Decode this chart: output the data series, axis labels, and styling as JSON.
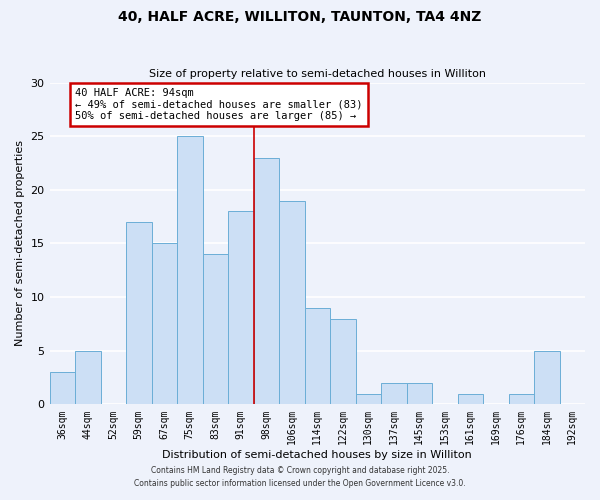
{
  "title": "40, HALF ACRE, WILLITON, TAUNTON, TA4 4NZ",
  "subtitle": "Size of property relative to semi-detached houses in Williton",
  "xlabel": "Distribution of semi-detached houses by size in Williton",
  "ylabel": "Number of semi-detached properties",
  "bin_labels": [
    "36sqm",
    "44sqm",
    "52sqm",
    "59sqm",
    "67sqm",
    "75sqm",
    "83sqm",
    "91sqm",
    "98sqm",
    "106sqm",
    "114sqm",
    "122sqm",
    "130sqm",
    "137sqm",
    "145sqm",
    "153sqm",
    "161sqm",
    "169sqm",
    "176sqm",
    "184sqm",
    "192sqm"
  ],
  "bar_values": [
    3,
    5,
    0,
    17,
    15,
    25,
    14,
    18,
    23,
    19,
    9,
    8,
    1,
    2,
    2,
    0,
    1,
    0,
    1,
    5,
    0
  ],
  "bar_color": "#ccdff5",
  "bar_edge_color": "#6baed6",
  "background_color": "#eef2fb",
  "grid_color": "#ffffff",
  "vline_x": 7.5,
  "vline_color": "#cc0000",
  "ylim": [
    0,
    30
  ],
  "yticks": [
    0,
    5,
    10,
    15,
    20,
    25,
    30
  ],
  "annotation_title": "40 HALF ACRE: 94sqm",
  "annotation_line1": "← 49% of semi-detached houses are smaller (83)",
  "annotation_line2": "50% of semi-detached houses are larger (85) →",
  "annotation_box_facecolor": "#ffffff",
  "annotation_border_color": "#cc0000",
  "footer1": "Contains HM Land Registry data © Crown copyright and database right 2025.",
  "footer2": "Contains public sector information licensed under the Open Government Licence v3.0."
}
